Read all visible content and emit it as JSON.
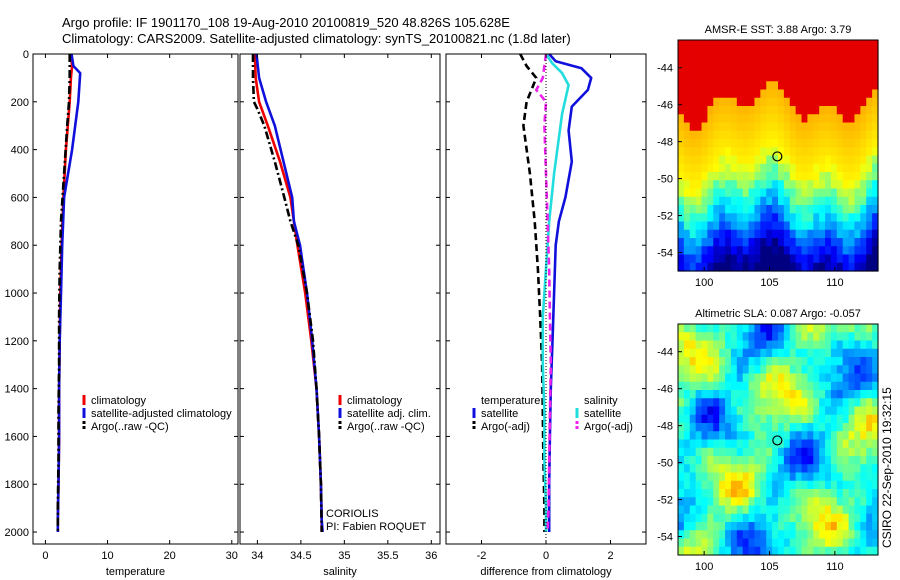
{
  "header": {
    "line1": "Argo profile: IF 1901170_108 19-Aug-2010 20100819_520 48.826S 105.628E",
    "line2": "Climatology: CARS2009. Satellite-adjusted climatology: synTS_20100821.nc (1.8d later)"
  },
  "credit": "CSIRO 22-Sep-2010 19:32:15",
  "colors": {
    "climatology": "#ee0000",
    "satellite": "#1010dd",
    "argo": "#000000",
    "sat_salinity": "#22dddd",
    "argo_adj_salinity": "#ee22ee"
  },
  "chart_data": [
    {
      "type": "line",
      "xlabel": "temperature",
      "ylabel": "",
      "xlim": [
        -2,
        31
      ],
      "ylim": [
        2050,
        0
      ],
      "xticks": [
        "0",
        "10",
        "20",
        "30"
      ],
      "xtick_values": [
        0,
        10,
        20,
        30
      ],
      "yticks": [
        "0",
        "200",
        "400",
        "600",
        "800",
        "1000",
        "1200",
        "1400",
        "1600",
        "1800",
        "2000"
      ],
      "ytick_values": [
        0,
        200,
        400,
        600,
        800,
        1000,
        1200,
        1400,
        1600,
        1800,
        2000
      ],
      "legend": [
        "climatology",
        "satellite-adjusted climatology",
        "Argo(..raw -QC)"
      ],
      "series": [
        {
          "name": "climatology",
          "style": "solid",
          "color": "#ee0000",
          "x": [
            4.1,
            4.3,
            4.1,
            3.9,
            3.3,
            2.9,
            2.6,
            2.4,
            2.3,
            2.2,
            2.2,
            2.1,
            2.0,
            2.0
          ],
          "y": [
            0,
            50,
            100,
            200,
            400,
            600,
            800,
            1000,
            1200,
            1400,
            1600,
            1800,
            1950,
            2000
          ]
        },
        {
          "name": "satellite-adjusted climatology",
          "style": "solid",
          "color": "#1010dd",
          "x": [
            4.2,
            4.5,
            5.6,
            5.3,
            4.3,
            3.0,
            2.7,
            2.5,
            2.3,
            2.2,
            2.2,
            2.1,
            2.0,
            2.0
          ],
          "y": [
            0,
            50,
            80,
            200,
            400,
            600,
            800,
            1000,
            1200,
            1400,
            1600,
            1800,
            1950,
            2000
          ]
        },
        {
          "name": "Argo(..raw -QC)",
          "style": "dashdot",
          "color": "#000000",
          "x": [
            3.9,
            3.9,
            3.8,
            3.5,
            3.0,
            2.5,
            2.3,
            2.2,
            2.2,
            2.1,
            2.1,
            2.0,
            2.0
          ],
          "y": [
            0,
            100,
            200,
            300,
            500,
            700,
            900,
            1100,
            1300,
            1500,
            1700,
            1900,
            2000
          ]
        }
      ]
    },
    {
      "type": "line",
      "xlabel": "salinity",
      "ylabel": "",
      "xlim": [
        33.8,
        36.1
      ],
      "ylim": [
        2050,
        0
      ],
      "xticks": [
        "34",
        "34.5",
        "35",
        "35.5",
        "36"
      ],
      "xtick_values": [
        34,
        34.5,
        35,
        35.5,
        36
      ],
      "legend": [
        "climatology",
        "satellite adj. clim.",
        "Argo(..raw -QC)"
      ],
      "annotations": [
        "CORIOLIS",
        "PI: Fabien ROQUET"
      ],
      "series": [
        {
          "name": "climatology",
          "style": "solid",
          "color": "#ee0000",
          "x": [
            33.97,
            33.98,
            34.02,
            34.12,
            34.26,
            34.38,
            34.46,
            34.55,
            34.62,
            34.68,
            34.71,
            34.73,
            34.74,
            34.74
          ],
          "y": [
            0,
            100,
            200,
            300,
            450,
            600,
            800,
            1000,
            1200,
            1400,
            1600,
            1800,
            1950,
            2000
          ]
        },
        {
          "name": "satellite adj. clim.",
          "style": "solid",
          "color": "#1010dd",
          "x": [
            33.99,
            34.02,
            34.1,
            34.2,
            34.3,
            34.4,
            34.42,
            34.49,
            34.57,
            34.63,
            34.68,
            34.71,
            34.73,
            34.74,
            34.75
          ],
          "y": [
            0,
            100,
            200,
            300,
            450,
            600,
            700,
            800,
            1000,
            1200,
            1400,
            1600,
            1800,
            1950,
            2000
          ]
        },
        {
          "name": "Argo(..raw -QC)",
          "style": "dashdot",
          "color": "#000000",
          "x": [
            33.95,
            33.95,
            33.96,
            34.0,
            34.08,
            34.2,
            34.31,
            34.38,
            34.47,
            34.57,
            34.64,
            34.68,
            34.71,
            34.73,
            34.74
          ],
          "y": [
            0,
            100,
            200,
            230,
            300,
            450,
            600,
            700,
            800,
            1000,
            1200,
            1400,
            1600,
            1800,
            2000
          ]
        }
      ]
    },
    {
      "type": "line",
      "xlabel": "difference from climatology",
      "ylabel": "",
      "xlim": [
        -3.1,
        3.1
      ],
      "ylim": [
        2050,
        0
      ],
      "xticks": [
        "-2",
        "0",
        "2"
      ],
      "xtick_values": [
        -2,
        0,
        2
      ],
      "legend_groups": [
        "temperature",
        "salinity"
      ],
      "legend": [
        "satellite",
        "Argo(-adj)",
        "satellite",
        "Argo(-adj)"
      ],
      "series": [
        {
          "name": "satellite",
          "group": "temperature",
          "style": "solid",
          "color": "#1010dd",
          "x": [
            0.1,
            0.3,
            1.1,
            1.4,
            1.3,
            0.8,
            0.7,
            0.8,
            0.6,
            0.4,
            0.3,
            0.25,
            0.2,
            0.15,
            0.12,
            0.1,
            0.1,
            0.1
          ],
          "y": [
            0,
            30,
            60,
            100,
            150,
            220,
            320,
            450,
            600,
            700,
            800,
            1000,
            1200,
            1400,
            1600,
            1800,
            1950,
            2000
          ]
        },
        {
          "name": "Argo(-adj)",
          "group": "temperature",
          "style": "dashed",
          "color": "#000000",
          "x": [
            -0.8,
            -0.6,
            -0.3,
            -0.6,
            -0.7,
            -0.5,
            -0.35,
            -0.25,
            -0.18,
            -0.12,
            -0.1,
            -0.08,
            -0.05,
            -0.05
          ],
          "y": [
            0,
            50,
            100,
            200,
            300,
            500,
            700,
            900,
            1100,
            1300,
            1500,
            1700,
            1900,
            2000
          ]
        },
        {
          "name": "satellite",
          "group": "salinity",
          "style": "solid",
          "color": "#22dddd",
          "x": [
            0.0,
            0.2,
            0.5,
            0.7,
            0.5,
            0.25,
            0.1,
            0.0,
            -0.1,
            -0.1,
            -0.05,
            -0.05,
            0.0,
            0.0
          ],
          "y": [
            0,
            40,
            80,
            130,
            250,
            500,
            700,
            900,
            1100,
            1300,
            1500,
            1700,
            1900,
            2000
          ]
        },
        {
          "name": "Argo(-adj)",
          "group": "salinity",
          "style": "dashed",
          "color": "#ee22ee",
          "x": [
            0.0,
            -0.1,
            -0.3,
            0.0,
            -0.05,
            0.0,
            0.05,
            0.1,
            0.12,
            0.15,
            0.12,
            0.1,
            0.08,
            0.05
          ],
          "y": [
            0,
            100,
            150,
            200,
            300,
            500,
            700,
            900,
            1100,
            1300,
            1500,
            1700,
            1900,
            2000
          ]
        }
      ]
    },
    {
      "type": "heatmap",
      "title": "AMSR-E SST: 3.88 Argo: 3.79",
      "xlim": [
        98,
        113.3
      ],
      "ylim": [
        -55,
        -42.5
      ],
      "xticks": [
        "100",
        "105",
        "110"
      ],
      "xtick_values": [
        100,
        105,
        110
      ],
      "yticks": [
        "-44",
        "-46",
        "-48",
        "-50",
        "-52",
        "-54"
      ],
      "ytick_values": [
        -44,
        -46,
        -48,
        -50,
        -52,
        -54
      ],
      "marker": {
        "lon": 105.6,
        "lat": -48.8
      }
    },
    {
      "type": "heatmap",
      "title": "Altimetric SLA: 0.087 Argo: -0.057",
      "xlim": [
        98,
        113.3
      ],
      "ylim": [
        -55,
        -42.5
      ],
      "xticks": [
        "100",
        "105",
        "110"
      ],
      "xtick_values": [
        100,
        105,
        110
      ],
      "yticks": [
        "-44",
        "-46",
        "-48",
        "-50",
        "-52",
        "-54"
      ],
      "ytick_values": [
        -44,
        -46,
        -48,
        -50,
        -52,
        -54
      ],
      "marker": {
        "lon": 105.6,
        "lat": -48.8
      }
    }
  ]
}
